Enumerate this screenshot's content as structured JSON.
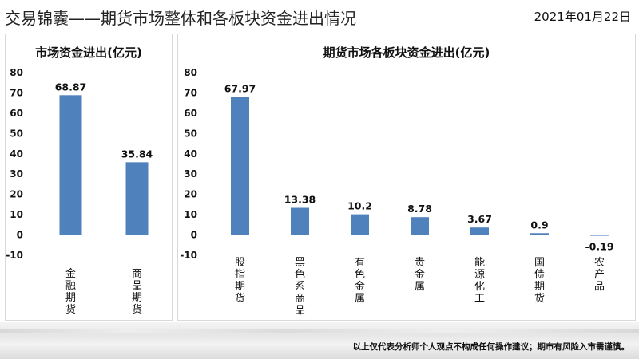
{
  "header": {
    "title": "交易锦囊——期货市场整体和各板块资金进出情况",
    "date": "2021年01月22日"
  },
  "footer": {
    "disclaimer": "以上仅代表分析师个人观点不构成任何操作建议；期市有风险入市需谨慎。"
  },
  "colors": {
    "bar": "#4f81bd",
    "grid": "#d9d9d9"
  },
  "chart_data": [
    {
      "type": "bar",
      "title": "市场资金进出(亿元)",
      "categories": [
        "金融期货",
        "商品期货"
      ],
      "values": [
        68.87,
        35.84
      ],
      "value_labels": [
        "68.87",
        "35.84"
      ],
      "ylim": [
        -10,
        80
      ],
      "yticks": [
        -10,
        0,
        10,
        20,
        30,
        40,
        50,
        60,
        70,
        80
      ],
      "grid": false,
      "legend": "none"
    },
    {
      "type": "bar",
      "title": "期货市场各板块资金进出(亿元)",
      "categories": [
        "股指期货",
        "黑色系商品",
        "有色金属",
        "贵金属",
        "能源化工",
        "国债期货",
        "农产品"
      ],
      "values": [
        67.97,
        13.38,
        10.2,
        8.78,
        3.67,
        0.9,
        -0.19
      ],
      "value_labels": [
        "67.97",
        "13.38",
        "10.2",
        "8.78",
        "3.67",
        "0.9",
        "-0.19"
      ],
      "ylim": [
        -10,
        80
      ],
      "yticks": [
        -10,
        0,
        10,
        20,
        30,
        40,
        50,
        60,
        70,
        80
      ],
      "grid": false,
      "legend": "none"
    }
  ]
}
